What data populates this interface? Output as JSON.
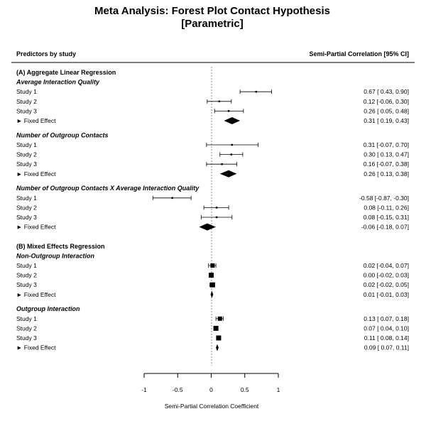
{
  "chart_data": {
    "type": "forest",
    "title_line1": "Meta Analysis: Forest Plot Contact Hypothesis",
    "title_line2": "[Parametric]",
    "left_header": "Predictors by study",
    "right_header": "Semi-Partial Correlation [95% CI]",
    "xlabel": "Semi-Partial Correlation Coefficient",
    "xlim": [
      -1,
      1
    ],
    "xticks": [
      -1,
      -0.5,
      0,
      0.5,
      1
    ],
    "xtick_labels": [
      "-1",
      "-0.5",
      "0",
      "0.5",
      "1"
    ],
    "reference_line": 0,
    "sections": [
      {
        "label": "(A) Aggregate Linear Regression",
        "groups": [
          {
            "label": "Average Interaction Quality",
            "rows": [
              {
                "label": "Study 1",
                "est": 0.67,
                "lo": 0.43,
                "hi": 0.9,
                "text": "0.67 [ 0.43,  0.90]",
                "kind": "study",
                "weight": "small"
              },
              {
                "label": "Study 2",
                "est": 0.12,
                "lo": -0.06,
                "hi": 0.3,
                "text": "0.12 [-0.06,  0.30]",
                "kind": "study",
                "weight": "small"
              },
              {
                "label": "Study 3",
                "est": 0.26,
                "lo": 0.05,
                "hi": 0.48,
                "text": "0.26 [ 0.05,  0.48]",
                "kind": "study",
                "weight": "small"
              },
              {
                "label": "► Fixed Effect",
                "est": 0.31,
                "lo": 0.19,
                "hi": 0.43,
                "text": "0.31 [ 0.19,  0.43]",
                "kind": "summary"
              }
            ]
          },
          {
            "label": "Number of Outgroup Contacts",
            "rows": [
              {
                "label": "Study 1",
                "est": 0.31,
                "lo": -0.07,
                "hi": 0.7,
                "text": "0.31 [-0.07,  0.70]",
                "kind": "study",
                "weight": "small"
              },
              {
                "label": "Study 2",
                "est": 0.3,
                "lo": 0.13,
                "hi": 0.47,
                "text": "0.30 [ 0.13,  0.47]",
                "kind": "study",
                "weight": "small"
              },
              {
                "label": "Study 3",
                "est": 0.16,
                "lo": -0.07,
                "hi": 0.38,
                "text": "0.16 [-0.07,  0.38]",
                "kind": "study",
                "weight": "small"
              },
              {
                "label": "► Fixed Effect",
                "est": 0.26,
                "lo": 0.13,
                "hi": 0.38,
                "text": "0.26 [ 0.13,  0.38]",
                "kind": "summary"
              }
            ]
          },
          {
            "label": "Number of Outgroup Contacts X Average Interaction Quality",
            "rows": [
              {
                "label": "Study 1",
                "est": -0.58,
                "lo": -0.87,
                "hi": -0.3,
                "text": "-0.58 [-0.87, -0.30]",
                "kind": "study",
                "weight": "small"
              },
              {
                "label": "Study 2",
                "est": 0.08,
                "lo": -0.11,
                "hi": 0.26,
                "text": "0.08 [-0.11,  0.26]",
                "kind": "study",
                "weight": "small"
              },
              {
                "label": "Study 3",
                "est": 0.08,
                "lo": -0.15,
                "hi": 0.31,
                "text": "0.08 [-0.15,  0.31]",
                "kind": "study",
                "weight": "small"
              },
              {
                "label": "► Fixed Effect",
                "est": -0.06,
                "lo": -0.18,
                "hi": 0.07,
                "text": "-0.06 [-0.18,  0.07]",
                "kind": "summary"
              }
            ]
          }
        ]
      },
      {
        "label": "(B) Mixed Effects Regression",
        "groups": [
          {
            "label": "Non-Outgroup Interaction",
            "rows": [
              {
                "label": "Study 1",
                "est": 0.02,
                "lo": -0.04,
                "hi": 0.07,
                "text": "0.02 [-0.04,  0.07]",
                "kind": "study",
                "weight": "medium"
              },
              {
                "label": "Study 2",
                "est": 0.0,
                "lo": -0.02,
                "hi": 0.03,
                "text": "0.00 [-0.02,  0.03]",
                "kind": "study",
                "weight": "large"
              },
              {
                "label": "Study 3",
                "est": 0.02,
                "lo": -0.02,
                "hi": 0.05,
                "text": "0.02 [-0.02,  0.05]",
                "kind": "study",
                "weight": "large"
              },
              {
                "label": "► Fixed Effect",
                "est": 0.01,
                "lo": -0.01,
                "hi": 0.03,
                "text": "0.01 [-0.01,  0.03]",
                "kind": "summary"
              }
            ]
          },
          {
            "label": "Outgroup Interaction",
            "rows": [
              {
                "label": "Study 1",
                "est": 0.13,
                "lo": 0.07,
                "hi": 0.18,
                "text": "0.13 [ 0.07,  0.18]",
                "kind": "study",
                "weight": "medium"
              },
              {
                "label": "Study 2",
                "est": 0.07,
                "lo": 0.04,
                "hi": 0.1,
                "text": "0.07 [ 0.04,  0.10]",
                "kind": "study",
                "weight": "large"
              },
              {
                "label": "Study 3",
                "est": 0.11,
                "lo": 0.08,
                "hi": 0.14,
                "text": "0.11 [ 0.08,  0.14]",
                "kind": "study",
                "weight": "large"
              },
              {
                "label": "► Fixed Effect",
                "est": 0.09,
                "lo": 0.07,
                "hi": 0.11,
                "text": "0.09 [ 0.07,  0.11]",
                "kind": "summary"
              }
            ]
          }
        ]
      }
    ]
  }
}
